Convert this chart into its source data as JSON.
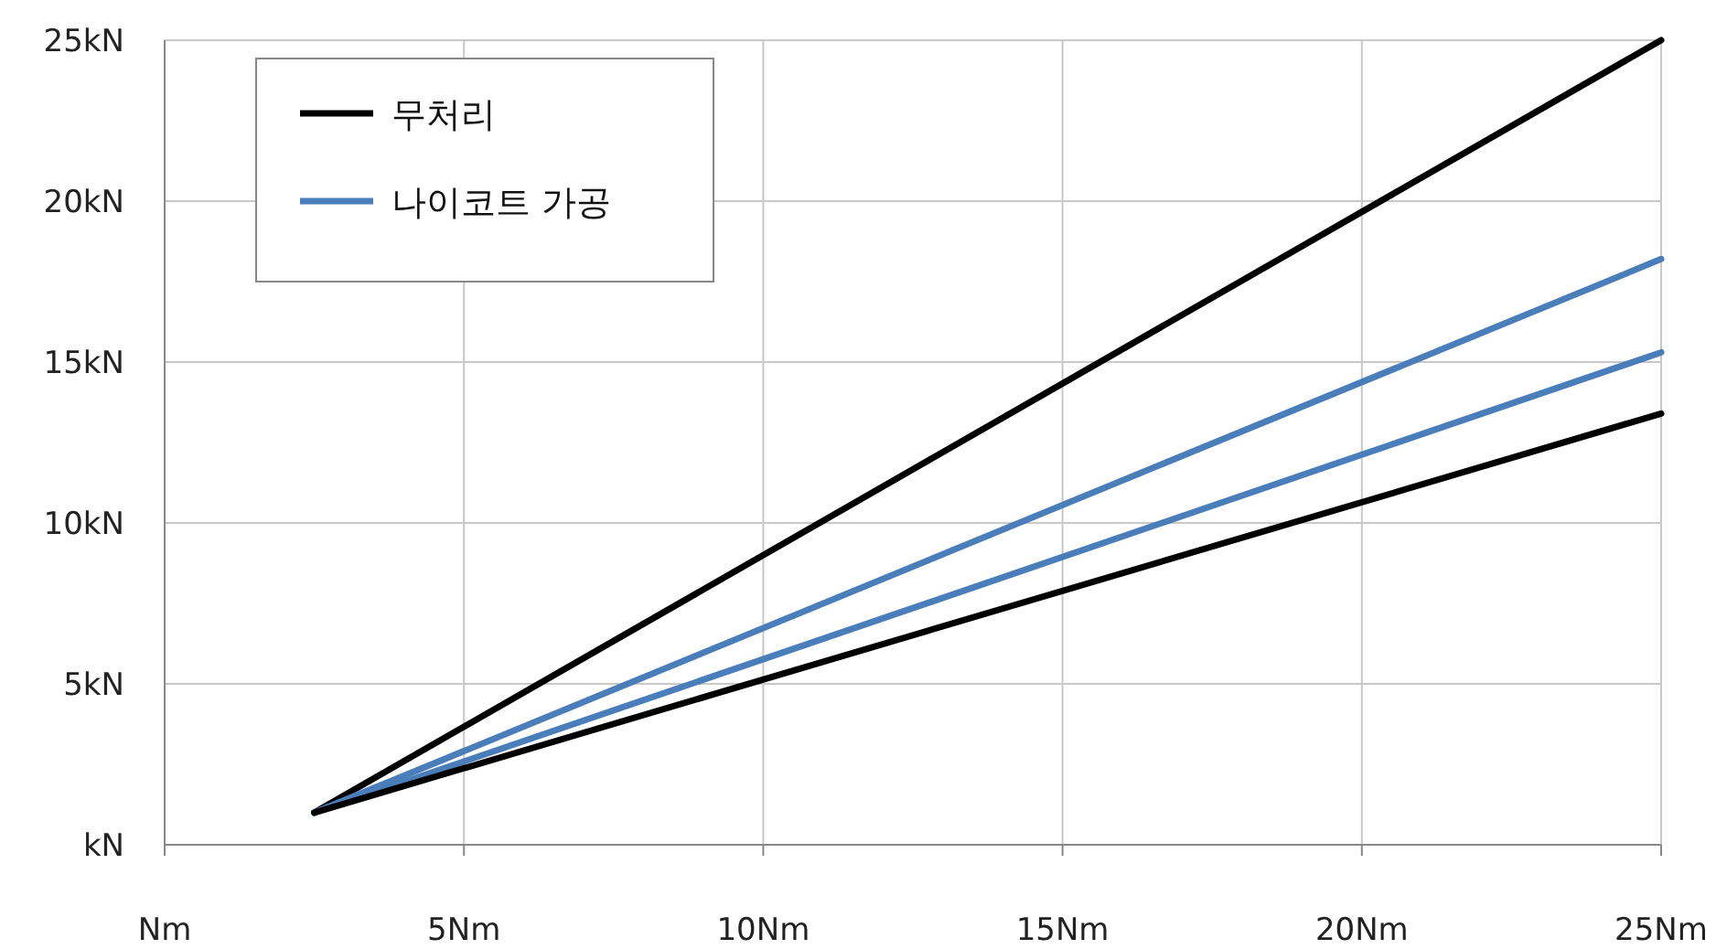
{
  "chart_data": {
    "type": "line",
    "legend": "top left",
    "grid": true,
    "marker": "none",
    "line_style": "solid",
    "xlim": [
      0,
      25
    ],
    "xticks": [
      {
        "value": 0,
        "label": "Nm"
      },
      {
        "value": 5,
        "label": "5Nm"
      },
      {
        "value": 10,
        "label": "10Nm"
      },
      {
        "value": 15,
        "label": "15Nm"
      },
      {
        "value": 20,
        "label": "20Nm"
      },
      {
        "value": 25,
        "label": "25Nm"
      }
    ],
    "ylim": [
      0,
      25
    ],
    "yticks": [
      {
        "value": 0,
        "label": "kN"
      },
      {
        "value": 5,
        "label": "5kN"
      },
      {
        "value": 10,
        "label": "10kN"
      },
      {
        "value": 15,
        "label": "15kN"
      },
      {
        "value": 20,
        "label": "20kN"
      },
      {
        "value": 25,
        "label": "25kN"
      }
    ],
    "x": [
      2.5,
      25
    ],
    "series": [
      {
        "name": "무처리",
        "color": "#000000",
        "values": [
          1.0,
          25.0
        ]
      },
      {
        "name": "나이코트 가공",
        "color": "#4a7ebb",
        "values": [
          1.0,
          18.2
        ]
      },
      {
        "color": "#4a7ebb",
        "values": [
          1.0,
          15.3
        ]
      },
      {
        "color": "#000000",
        "values": [
          1.0,
          13.4
        ]
      }
    ]
  }
}
